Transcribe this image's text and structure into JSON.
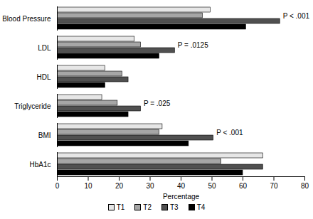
{
  "chart_data": {
    "type": "bar",
    "orientation": "horizontal",
    "categories": [
      "Blood Pressure",
      "LDL",
      "HDL",
      "Triglyceride",
      "BMI",
      "HbA1c"
    ],
    "series": [
      {
        "name": "T1",
        "color": "#e6e6e6",
        "values": [
          49.5,
          25,
          15.5,
          14.5,
          34,
          66.5
        ]
      },
      {
        "name": "T2",
        "color": "#a6a6a6",
        "values": [
          47,
          27,
          21,
          19.5,
          33,
          53
        ]
      },
      {
        "name": "T3",
        "color": "#505050",
        "values": [
          72,
          38,
          23,
          27,
          50.5,
          66.5
        ]
      },
      {
        "name": "T4",
        "color": "#000000",
        "values": [
          61,
          33,
          15.5,
          23,
          42.5,
          60
        ]
      }
    ],
    "x_label": "Percentage",
    "xlim": [
      0,
      80
    ],
    "xticks": [
      0,
      10,
      20,
      30,
      40,
      50,
      60,
      70,
      80
    ],
    "annotations": [
      {
        "text": "P < .001",
        "category": "Blood Pressure",
        "series": "T3"
      },
      {
        "text": "P = .0125",
        "category": "LDL",
        "series": "T3"
      },
      {
        "text": "P = .025",
        "category": "Triglyceride",
        "series": "T3"
      },
      {
        "text": "P < .001",
        "category": "BMI",
        "series": "T3"
      }
    ],
    "legend": "bottom",
    "grid": false
  }
}
